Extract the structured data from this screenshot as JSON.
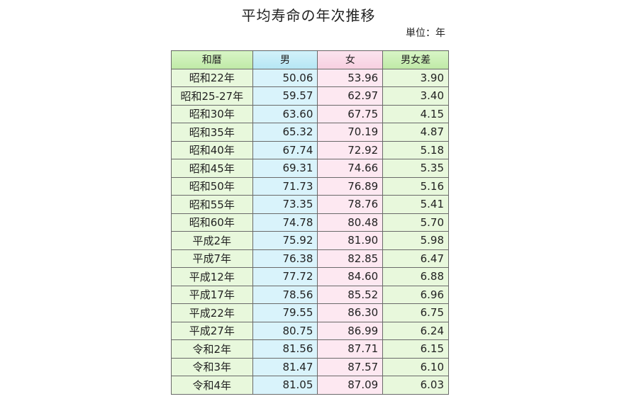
{
  "title": "平均寿命の年次推移",
  "unit": "単位：年",
  "headers": [
    "和暦",
    "男",
    "女",
    "男女差"
  ],
  "colors": {
    "era": "#e8f8dc",
    "male": "#d9f3fb",
    "female": "#fde8f1",
    "diff": "#e8f8dc"
  },
  "rows": [
    [
      "昭和22年",
      "50.06",
      "53.96",
      "3.90"
    ],
    [
      "昭和25-27年",
      "59.57",
      "62.97",
      "3.40"
    ],
    [
      "昭和30年",
      "63.60",
      "67.75",
      "4.15"
    ],
    [
      "昭和35年",
      "65.32",
      "70.19",
      "4.87"
    ],
    [
      "昭和40年",
      "67.74",
      "72.92",
      "5.18"
    ],
    [
      "昭和45年",
      "69.31",
      "74.66",
      "5.35"
    ],
    [
      "昭和50年",
      "71.73",
      "76.89",
      "5.16"
    ],
    [
      "昭和55年",
      "73.35",
      "78.76",
      "5.41"
    ],
    [
      "昭和60年",
      "74.78",
      "80.48",
      "5.70"
    ],
    [
      "平成2年",
      "75.92",
      "81.90",
      "5.98"
    ],
    [
      "平成7年",
      "76.38",
      "82.85",
      "6.47"
    ],
    [
      "平成12年",
      "77.72",
      "84.60",
      "6.88"
    ],
    [
      "平成17年",
      "78.56",
      "85.52",
      "6.96"
    ],
    [
      "平成22年",
      "79.55",
      "86.30",
      "6.75"
    ],
    [
      "平成27年",
      "80.75",
      "86.99",
      "6.24"
    ],
    [
      "令和2年",
      "81.56",
      "87.71",
      "6.15"
    ],
    [
      "令和3年",
      "81.47",
      "87.57",
      "6.10"
    ],
    [
      "令和4年",
      "81.05",
      "87.09",
      "6.03"
    ]
  ]
}
